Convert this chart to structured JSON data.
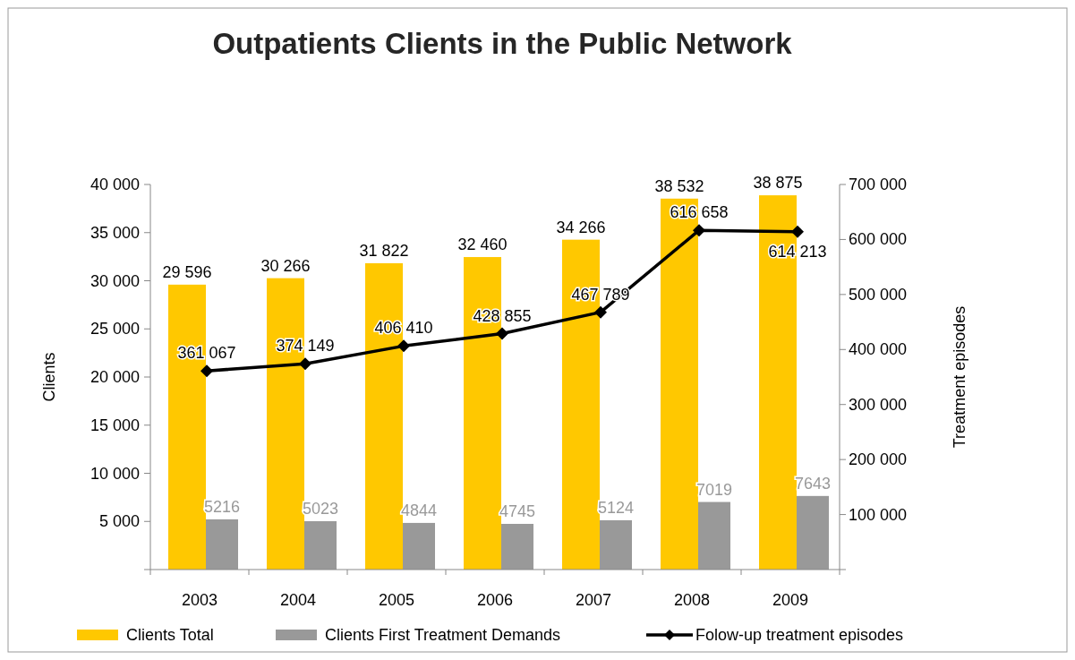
{
  "chart_data": {
    "type": "bar",
    "title": "Outpatients Clients in the Public Network",
    "ylabel": "Clients",
    "y2label": "Treatment episodes",
    "categories": [
      "2003",
      "2004",
      "2005",
      "2006",
      "2007",
      "2008",
      "2009"
    ],
    "series": [
      {
        "name": "Clients Total",
        "color": "#ffc800",
        "values": [
          29596,
          30266,
          31822,
          32460,
          34266,
          38532,
          38875
        ],
        "value_labels": [
          "29 596",
          "30 266",
          "31 822",
          "32 460",
          "34 266",
          "38 532",
          "38 875"
        ]
      },
      {
        "name": "Clients First Treatment Demands",
        "color": "#999999",
        "values": [
          5216,
          5023,
          4844,
          4745,
          5124,
          7019,
          7643
        ],
        "value_labels": [
          "5216",
          "5023",
          "4844",
          "4745",
          "5124",
          "7019",
          "7643"
        ]
      },
      {
        "name": "Folow-up treatment episodes",
        "type": "line",
        "axis": "y2",
        "color": "#000000",
        "marker": "diamond",
        "line_style": "solid",
        "values": [
          361067,
          374149,
          406410,
          428855,
          467789,
          616658,
          614213
        ],
        "value_labels": [
          "361 067",
          "374 149",
          "406 410",
          "428 855",
          "467 789",
          "616 658",
          "614 213"
        ]
      }
    ],
    "ylim": [
      0,
      40000
    ],
    "yticks": [
      {
        "value": 0,
        "label": null
      },
      {
        "value": 5000,
        "label": "5 000"
      },
      {
        "value": 10000,
        "label": "10 000"
      },
      {
        "value": 15000,
        "label": "15 000"
      },
      {
        "value": 20000,
        "label": "20 000"
      },
      {
        "value": 25000,
        "label": "25 000"
      },
      {
        "value": 30000,
        "label": "30 000"
      },
      {
        "value": 35000,
        "label": "35 000"
      },
      {
        "value": 40000,
        "label": "40 000"
      }
    ],
    "y2lim": [
      0,
      700000
    ],
    "y2ticks": [
      {
        "value": 0,
        "label": null
      },
      {
        "value": 100000,
        "label": "100 000"
      },
      {
        "value": 200000,
        "label": "200 000"
      },
      {
        "value": 300000,
        "label": "300 000"
      },
      {
        "value": 400000,
        "label": "400 000"
      },
      {
        "value": 500000,
        "label": "500 000"
      },
      {
        "value": 600000,
        "label": "600 000"
      },
      {
        "value": 700000,
        "label": "700 000"
      }
    ],
    "legend": "bottom"
  }
}
